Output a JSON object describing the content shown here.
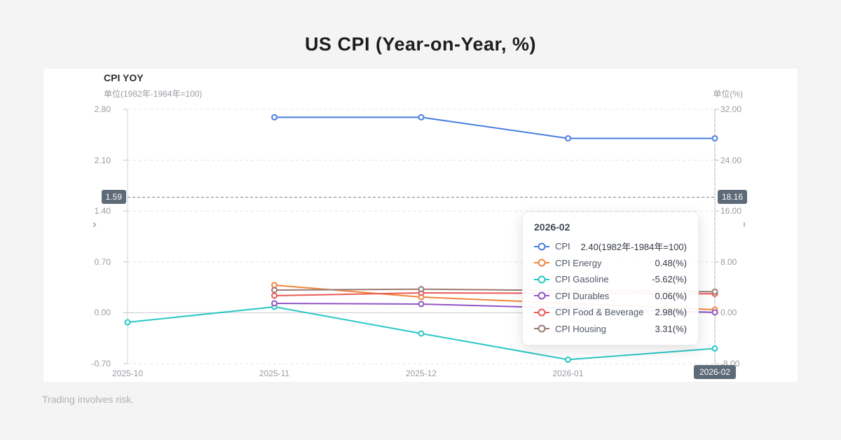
{
  "page": {
    "title": "US CPI (Year-on-Year, %)",
    "disclaimer": "Trading involves risk."
  },
  "panel": {
    "heading": "CPI YOY",
    "left_axis_unit": "单位(1982年-1984年=100)",
    "right_axis_unit": "单位(%)"
  },
  "chart_data": {
    "type": "line",
    "categories": [
      "2025-10",
      "2025-11",
      "2025-12",
      "2026-01",
      "2026-02"
    ],
    "series": [
      {
        "name": "CPI",
        "axis": "left",
        "color": "#4a7edd",
        "values": [
          null,
          2.69,
          2.69,
          2.4,
          2.4
        ]
      },
      {
        "name": "CPI Energy",
        "axis": "right",
        "color": "#f0863d",
        "values": [
          null,
          4.34,
          2.47,
          1.48,
          0.48
        ]
      },
      {
        "name": "CPI Gasoline",
        "axis": "right",
        "color": "#2ac7c5",
        "values": [
          -1.5,
          0.93,
          -3.26,
          -7.37,
          -5.62
        ]
      },
      {
        "name": "CPI Durables",
        "axis": "right",
        "color": "#9255c4",
        "values": [
          null,
          1.48,
          1.37,
          0.72,
          0.06
        ]
      },
      {
        "name": "CPI Food & Beverage",
        "axis": "right",
        "color": "#ea5a56",
        "values": [
          null,
          2.69,
          3.13,
          3.06,
          2.98
        ]
      },
      {
        "name": "CPI Housing",
        "axis": "right",
        "color": "#9a7a71",
        "values": [
          null,
          3.57,
          3.71,
          3.5,
          3.31
        ]
      }
    ],
    "left_axis": {
      "min": -0.7,
      "max": 2.8,
      "tick_labels": [
        "2.80",
        "2.10",
        "1.40",
        "0.70",
        "0.00",
        "-0.70"
      ]
    },
    "right_axis": {
      "min": -8.0,
      "max": 32.0,
      "tick_labels": [
        "32.00",
        "24.00",
        "16.00",
        "8.00",
        "0.00",
        "-8.00"
      ]
    },
    "grid": "horizontal dashed gridlines, legend hidden, tooltip shown",
    "axis_pointer": {
      "left_label": "1.59",
      "right_label": "18.16",
      "x_label": "2026-02",
      "left_value": 1.59,
      "badge_color": "#5d6a77"
    },
    "tooltip": {
      "title": "2026-02",
      "rows": [
        {
          "name": "CPI",
          "value": "2.40(1982年-1984年=100)",
          "color": "#4a7edd"
        },
        {
          "name": "CPI Energy",
          "value": "0.48(%)",
          "color": "#f0863d"
        },
        {
          "name": "CPI Gasoline",
          "value": "-5.62(%)",
          "color": "#2ac7c5"
        },
        {
          "name": "CPI Durables",
          "value": "0.06(%)",
          "color": "#9255c4"
        },
        {
          "name": "CPI Food & Beverage",
          "value": "2.98(%)",
          "color": "#ea5a56"
        },
        {
          "name": "CPI Housing",
          "value": "3.31(%)",
          "color": "#9a7a71"
        }
      ]
    }
  }
}
